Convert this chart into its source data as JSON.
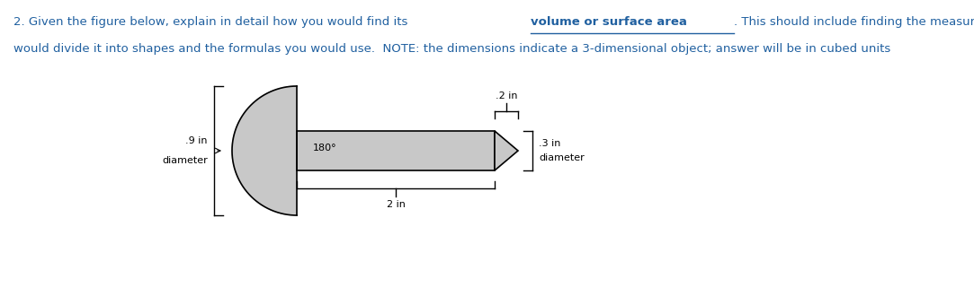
{
  "text_color": "#2060a0",
  "shape_fill": "#c8c8c8",
  "shape_edge": "#000000",
  "dim_color": "#000000",
  "label_09": ".9 in",
  "label_diameter_left": "diameter",
  "label_180": "180°",
  "label_2in": "2 in",
  "label_02": ".2 in",
  "label_03": ".3 in",
  "label_diameter_right": "diameter",
  "bg_color": "#ffffff",
  "fig_width": 10.83,
  "fig_height": 3.4,
  "dpi": 100,
  "line1_normal1": "2. Given the figure below, explain in detail how you would find its ",
  "line1_bold": "volume or surface area",
  "line1_normal2": ". This should include finding the measurements, how you",
  "line2": "would divide it into shapes and the formulas you would use.  NOTE: the dimensions indicate a 3-dimensional object; answer will be in cubed units",
  "font_size_text": 9.5,
  "font_size_label": 8.0
}
